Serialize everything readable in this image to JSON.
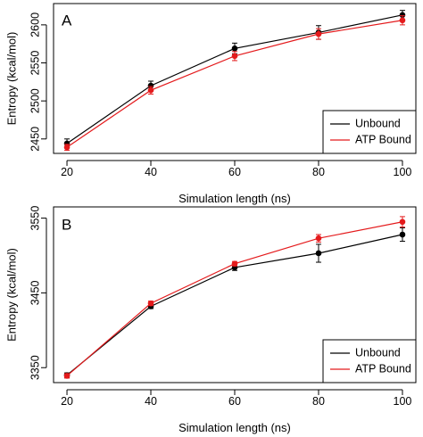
{
  "chart_data": [
    {
      "type": "line",
      "panel_label": "A",
      "xlabel": "Simulation length (ns)",
      "ylabel": "Entropy (kcal/mol)",
      "x": [
        20,
        40,
        60,
        80,
        100
      ],
      "x_ticks": [
        "20",
        "40",
        "60",
        "80",
        "100"
      ],
      "xlim": [
        16.8,
        103.2
      ],
      "y_ticks": [
        "2450",
        "2500",
        "2550",
        "2600"
      ],
      "y_tick_values": [
        2450,
        2500,
        2550,
        2600
      ],
      "ylim": [
        2431,
        2628
      ],
      "grid": false,
      "legend_position": "bottom-right",
      "series": [
        {
          "name": "Unbound",
          "color": "#000000",
          "values": [
            2444,
            2520,
            2569,
            2590,
            2613
          ],
          "errors": [
            6,
            6,
            7,
            9,
            6
          ]
        },
        {
          "name": "ATP Bound",
          "color": "#e41a1c",
          "values": [
            2439,
            2514,
            2559,
            2588,
            2606
          ],
          "errors": [
            4,
            5,
            6,
            7,
            6
          ]
        }
      ]
    },
    {
      "type": "line",
      "panel_label": "B",
      "xlabel": "Simulation length (ns)",
      "ylabel": "Entropy (kcal/mol)",
      "x": [
        20,
        40,
        60,
        80,
        100
      ],
      "x_ticks": [
        "20",
        "40",
        "60",
        "80",
        "100"
      ],
      "xlim": [
        16.8,
        103.2
      ],
      "y_ticks": [
        "3350",
        "3450",
        "3550"
      ],
      "y_tick_values": [
        3350,
        3450,
        3550
      ],
      "ylim": [
        3330,
        3565
      ],
      "grid": false,
      "legend_position": "bottom-right",
      "series": [
        {
          "name": "Unbound",
          "color": "#000000",
          "values": [
            3340,
            3432,
            3484,
            3503,
            3528
          ],
          "errors": [
            3,
            3,
            4,
            12,
            9
          ]
        },
        {
          "name": "ATP Bound",
          "color": "#e41a1c",
          "values": [
            3339,
            3436,
            3489,
            3523,
            3545
          ],
          "errors": [
            3,
            3,
            3,
            5,
            7
          ]
        }
      ]
    }
  ]
}
